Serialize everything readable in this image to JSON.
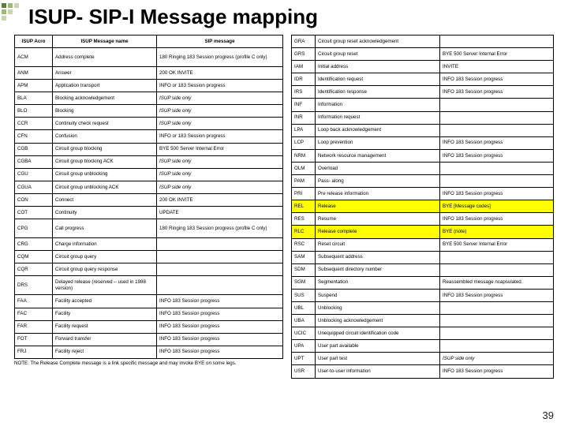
{
  "title": "ISUP- SIP-I Message mapping",
  "accent_colors": [
    "#5b7f3f",
    "#9fb87a",
    "#c8d6b4"
  ],
  "pagenum": "39",
  "note": "NOTE: The Release Complete message is a link specific message and may invoke BYE on some legs.",
  "table1": {
    "headers": [
      "ISUP Acro",
      "ISUP Message name",
      "SIP message"
    ],
    "rows": [
      {
        "c": [
          "ACM",
          "Address complete",
          "180 Ringing 183 Session progress (profile C only)"
        ],
        "tall": true
      },
      {
        "c": [
          "ANM",
          "Answer",
          "200 OK INVITE"
        ]
      },
      {
        "c": [
          "APM",
          "Application transport",
          "INFO or 183 Session progress"
        ]
      },
      {
        "c": [
          "BLA",
          "Blocking acknowledgement",
          "ISUP side only"
        ],
        "ital3": true
      },
      {
        "c": [
          "BLO",
          "Blocking",
          "ISUP side only"
        ],
        "ital3": true
      },
      {
        "c": [
          "CCR",
          "Continuity check request",
          "ISUP side only"
        ],
        "ital3": true
      },
      {
        "c": [
          "CFN",
          "Confusion",
          "INFO or 183 Session progress"
        ]
      },
      {
        "c": [
          "CGB",
          "Circuit group blocking",
          "BYE 500 Server Internal Error"
        ]
      },
      {
        "c": [
          "CGBA",
          "Circuit group blocking ACK",
          "ISUP side only"
        ],
        "ital3": true
      },
      {
        "c": [
          "CGU",
          "Circuit group unblocking",
          "ISUP side only"
        ],
        "ital3": true
      },
      {
        "c": [
          "CGUA",
          "Circuit group unblocking ACK",
          "ISUP side only"
        ],
        "ital3": true
      },
      {
        "c": [
          "CON",
          "Connect",
          "200 OK INVITE"
        ]
      },
      {
        "c": [
          "COT",
          "Continuity",
          "UPDATE"
        ]
      },
      {
        "c": [
          "CPG",
          "Call progress",
          "180 Ringing 183 Session progress (profile C only)"
        ],
        "tall": true
      },
      {
        "c": [
          "CRG",
          "Charge information",
          ""
        ]
      },
      {
        "c": [
          "CQM",
          "Circuit group query",
          ""
        ]
      },
      {
        "c": [
          "CQR",
          "Circuit group query response",
          ""
        ]
      },
      {
        "c": [
          "DRS",
          "Delayed release (reserved – used in 1988 version)",
          ""
        ],
        "tall": true
      },
      {
        "c": [
          "FAA",
          "Facility accepted",
          "INFO 183 Session progress"
        ]
      },
      {
        "c": [
          "FAC",
          "Facility",
          "INFO 183 Session progress"
        ]
      },
      {
        "c": [
          "FAR",
          "Facility request",
          "INFO 183 Session progress"
        ]
      },
      {
        "c": [
          "FOT",
          "Forward transfer",
          "INFO 183 Session progress"
        ]
      },
      {
        "c": [
          "FRJ",
          "Facility reject",
          "INFO 183 Session progress"
        ]
      }
    ]
  },
  "table2": {
    "rows": [
      {
        "c": [
          "GRA",
          "Circuit group reset acknowledgement",
          ""
        ]
      },
      {
        "c": [
          "GRS",
          "Circuit group reset",
          "BYE 500 Server Internal Error"
        ]
      },
      {
        "c": [
          "IAM",
          "Initial address",
          "INVITE"
        ]
      },
      {
        "c": [
          "IDR",
          "Identification request",
          "INFO 183 Session progress"
        ]
      },
      {
        "c": [
          "IRS",
          "Identification response",
          "INFO 183 Session progress"
        ]
      },
      {
        "c": [
          "INF",
          "Information",
          ""
        ]
      },
      {
        "c": [
          "INR",
          "Information request",
          ""
        ]
      },
      {
        "c": [
          "LPA",
          "Loop back acknowledgement",
          ""
        ]
      },
      {
        "c": [
          "LCP",
          "Loop prevention",
          "INFO 183 Session progress"
        ]
      },
      {
        "c": [
          "NRM",
          "Network resource management",
          "INFO 183 Session progress"
        ]
      },
      {
        "c": [
          "OLM",
          "Overload",
          ""
        ]
      },
      {
        "c": [
          "PAM",
          "Pass- along",
          ""
        ]
      },
      {
        "c": [
          "PRI",
          "Pre release information",
          "INFO 183 Session progress"
        ]
      },
      {
        "c": [
          "REL",
          "Release",
          "BYE [Message codes]"
        ],
        "hl": true
      },
      {
        "c": [
          "RES",
          "Resume",
          "INFO 183 Session progress"
        ]
      },
      {
        "c": [
          "RLC",
          "Release complete",
          "BYE (note)"
        ],
        "hl": true
      },
      {
        "c": [
          "RSC",
          "Reset circuit",
          "BYE  500 Server Internal Error"
        ]
      },
      {
        "c": [
          "SAM",
          "Subsequent address",
          ""
        ]
      },
      {
        "c": [
          "SDM",
          "Subsequent directory number",
          ""
        ]
      },
      {
        "c": [
          "SGM",
          "Segmentation",
          "Reassembled message ncapsulated."
        ]
      },
      {
        "c": [
          "SUS",
          "Suspend",
          "INFO 183 Session progress"
        ]
      },
      {
        "c": [
          "UBL",
          "Unblocking",
          ""
        ]
      },
      {
        "c": [
          "UBA",
          "Unblocking acknowledgement",
          ""
        ]
      },
      {
        "c": [
          "UCIC",
          "Unequipped circuit identification code",
          ""
        ]
      },
      {
        "c": [
          "UPA",
          "User part available",
          ""
        ]
      },
      {
        "c": [
          "UPT",
          "User part test",
          "ISUP side only"
        ],
        "ital3": true
      },
      {
        "c": [
          "USR",
          "User-to-user information",
          "INFO 183 Session progress"
        ]
      }
    ]
  }
}
